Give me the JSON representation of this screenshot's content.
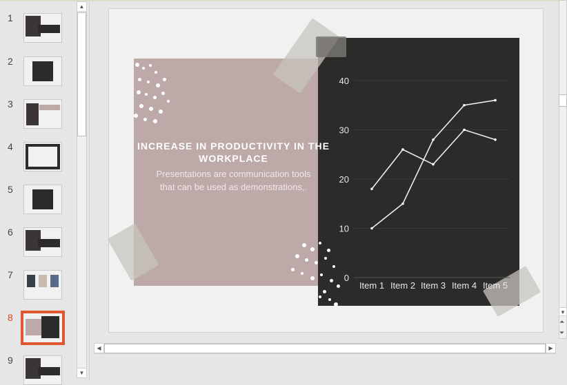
{
  "thumbnails": [
    {
      "number": "1",
      "selected": false,
      "theme": "photo-dark"
    },
    {
      "number": "2",
      "selected": false,
      "theme": "dark"
    },
    {
      "number": "3",
      "selected": false,
      "theme": "photo-pink"
    },
    {
      "number": "4",
      "selected": false,
      "theme": "dark-frame"
    },
    {
      "number": "5",
      "selected": false,
      "theme": "dark"
    },
    {
      "number": "6",
      "selected": false,
      "theme": "photo-dark"
    },
    {
      "number": "7",
      "selected": false,
      "theme": "photos"
    },
    {
      "number": "8",
      "selected": true,
      "theme": "pink-dark"
    },
    {
      "number": "9",
      "selected": false,
      "theme": "photo-dark"
    }
  ],
  "slide": {
    "title": "INCREASE IN PRODUCTIVITY IN THE WORKPLACE",
    "subtitle": "Presentations are communication tools that can be used as demonstrations,."
  },
  "colors": {
    "accent": "#e0562f",
    "pink": "#bda9a8",
    "dark": "#2d2b2a",
    "slide_bg": "#f0f1f0"
  },
  "chart_data": {
    "type": "line",
    "categories": [
      "Item 1",
      "Item 2",
      "Item 3",
      "Item 4",
      "Item 5"
    ],
    "series": [
      {
        "values": [
          18,
          26,
          23,
          30,
          28
        ]
      },
      {
        "values": [
          10,
          15,
          28,
          35,
          36
        ]
      }
    ],
    "yticks": [
      "0",
      "10",
      "20",
      "30",
      "40"
    ],
    "ylim": [
      0,
      40
    ],
    "grid": true
  }
}
